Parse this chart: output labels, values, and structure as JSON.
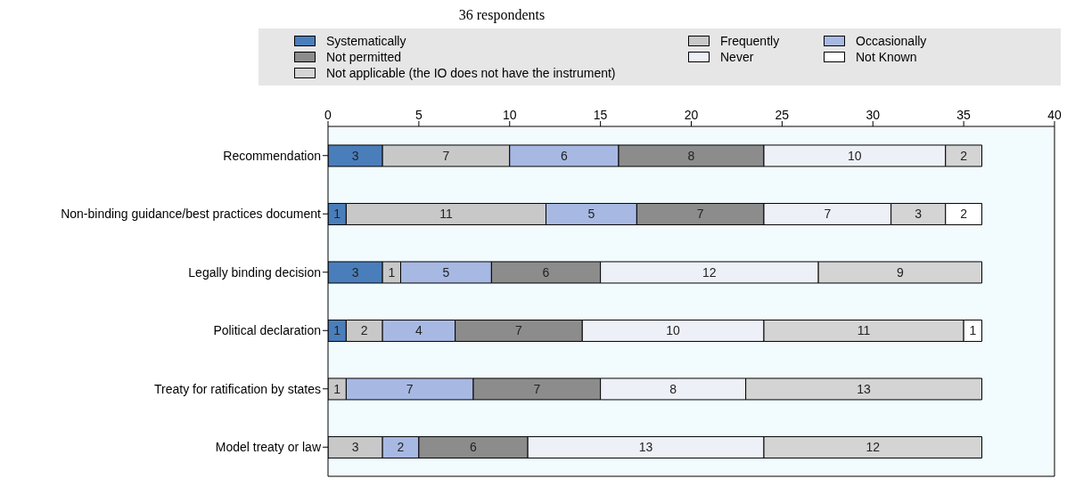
{
  "chart_data": {
    "type": "bar",
    "title": "36 respondents",
    "orientation": "horizontal",
    "stacked": true,
    "data_labels": true,
    "legend": "top",
    "xlim": [
      0,
      40
    ],
    "xticks": [
      0,
      5,
      10,
      15,
      20,
      25,
      30,
      35,
      40
    ],
    "categories": [
      "Recommendation",
      "Non-binding guidance/best practices document",
      "Legally binding decision",
      "Political declaration",
      "Treaty for ratification by states",
      "Model treaty or law"
    ],
    "series": [
      {
        "name": "Systematically",
        "color": "#4a7ebb",
        "values": [
          3,
          1,
          3,
          1,
          null,
          null
        ]
      },
      {
        "name": "Frequently",
        "color": "#c8c8c8",
        "values": [
          7,
          11,
          1,
          2,
          1,
          3
        ]
      },
      {
        "name": "Occasionally",
        "color": "#a7b9e3",
        "values": [
          6,
          5,
          5,
          4,
          7,
          2
        ]
      },
      {
        "name": "Not permitted",
        "color": "#8c8c8c",
        "values": [
          8,
          7,
          6,
          7,
          7,
          6
        ]
      },
      {
        "name": "Never",
        "color": "#eef0f8",
        "values": [
          10,
          7,
          12,
          10,
          8,
          13
        ]
      },
      {
        "name": "Not applicable (the IO does not have the instrument)",
        "color": "#d4d4d4",
        "values": [
          2,
          3,
          9,
          11,
          13,
          12
        ]
      },
      {
        "name": "Not Known",
        "color": "#ffffff",
        "values": [
          null,
          2,
          null,
          1,
          null,
          null
        ]
      }
    ]
  }
}
